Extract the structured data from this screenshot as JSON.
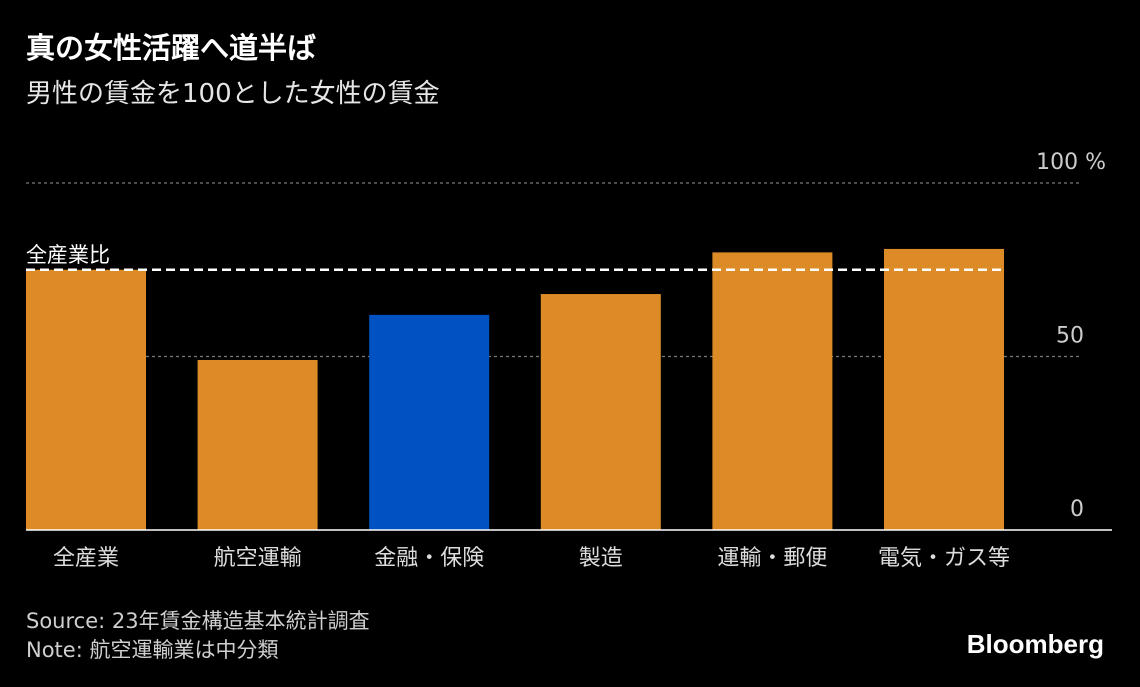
{
  "header": {
    "title": "真の女性活躍へ道半ば",
    "subtitle": "男性の賃金を100とした女性の賃金"
  },
  "chart_data": {
    "type": "bar",
    "categories": [
      "全産業",
      "航空運輸",
      "金融・保険",
      "製造",
      "運輸・郵便",
      "電気・ガス等"
    ],
    "values": [
      75,
      49,
      62,
      68,
      80,
      81
    ],
    "highlight_index": 2,
    "colors": {
      "default": "#DD8B27",
      "highlight": "#0052C2",
      "reference_line": "#FFFFFF",
      "grid": "#7A7A7A",
      "axis": "#FFFFFF",
      "tick_label": "#CCCCCC",
      "category_label": "#DDDDDD"
    },
    "ylim": [
      0,
      100
    ],
    "yticks": [
      {
        "value": 0,
        "label": "0"
      },
      {
        "value": 50,
        "label": "50"
      },
      {
        "value": 100,
        "label": "100 %"
      }
    ],
    "grid": true,
    "reference_line": {
      "value": 75,
      "label": "全産業比"
    }
  },
  "footer": {
    "source": "Source: 23年賃金構造基本統計調査",
    "note": "Note: 航空運輸業は中分類",
    "brand": "Bloomberg"
  }
}
